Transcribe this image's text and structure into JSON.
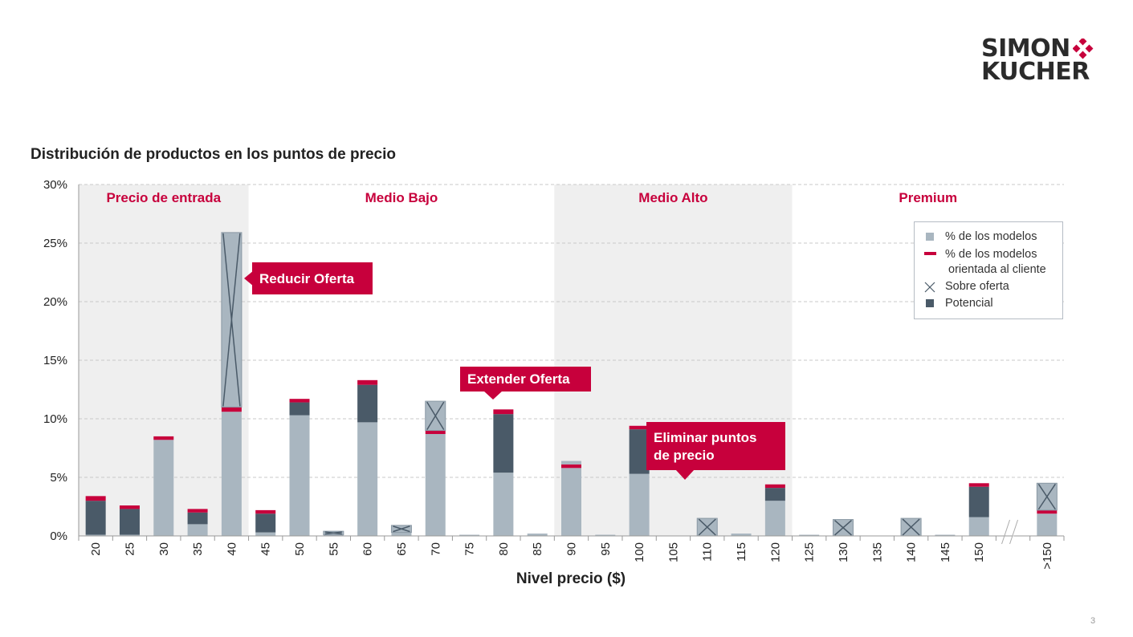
{
  "logo": {
    "line1": "SIMON",
    "line2": "KUCHER",
    "brand_color": "#c7003c"
  },
  "page_number": "3",
  "chart_data": {
    "type": "bar",
    "title": "Distribución de productos en los puntos de precio",
    "xlabel": "Nivel precio ($)",
    "ylabel": "",
    "ylim": [
      0,
      30
    ],
    "yticks": [
      "0%",
      "5%",
      "10%",
      "15%",
      "20%",
      "25%",
      "30%"
    ],
    "categories": [
      "20",
      "25",
      "30",
      "35",
      "40",
      "45",
      "50",
      "55",
      "60",
      "65",
      "70",
      "75",
      "80",
      "85",
      "90",
      "95",
      "100",
      "105",
      "110",
      "115",
      "120",
      "125",
      "130",
      "135",
      "140",
      "145",
      "150",
      "",
      ">150"
    ],
    "segments": [
      {
        "name": "% de los modelos",
        "color": "#a9b6c0",
        "values": [
          0.1,
          0.1,
          8.2,
          1.0,
          10.6,
          0.3,
          10.3,
          0.1,
          9.7,
          0.3,
          8.7,
          0.1,
          5.4,
          0.2,
          5.8,
          0.1,
          5.3,
          0,
          0,
          0.2,
          3.0,
          0.1,
          0,
          0,
          0,
          0.1,
          1.6,
          null,
          1.9
        ]
      },
      {
        "name": "Potencial",
        "color": "#4a5a68",
        "values": [
          2.9,
          2.2,
          0,
          1.0,
          0,
          1.6,
          1.1,
          0,
          3.2,
          0,
          0,
          0,
          5.0,
          0,
          0,
          0,
          3.8,
          0,
          0,
          0,
          1.1,
          0,
          0,
          0,
          0,
          0,
          2.6,
          null,
          0
        ]
      },
      {
        "name": "% de los modelos orientada al cliente",
        "color": "#c7003c",
        "values": [
          0.4,
          0.3,
          0.3,
          0.3,
          0.4,
          0.3,
          0.3,
          0,
          0.4,
          0,
          0.3,
          0,
          0.4,
          0,
          0.3,
          0,
          0.3,
          0,
          0,
          0,
          0.3,
          0,
          0,
          0,
          0,
          0,
          0.3,
          null,
          0.3
        ]
      },
      {
        "name": "Sobre oferta",
        "color": "#a9b6c0",
        "values": [
          0,
          0,
          0,
          0,
          14.9,
          0,
          0,
          0.3,
          0,
          0.6,
          2.5,
          0,
          0,
          0,
          0.3,
          0,
          0,
          0,
          1.5,
          0,
          0,
          0,
          1.4,
          0,
          1.5,
          0,
          0,
          null,
          2.3
        ]
      }
    ],
    "overoffer_marker": [
      false,
      false,
      false,
      false,
      true,
      false,
      false,
      true,
      false,
      true,
      true,
      false,
      false,
      false,
      false,
      false,
      false,
      false,
      true,
      false,
      false,
      false,
      true,
      false,
      true,
      false,
      false,
      false,
      true
    ],
    "regions": [
      {
        "label": "Precio de entrada",
        "from": "20",
        "to": "40",
        "shaded": true
      },
      {
        "label": "Medio Bajo",
        "from": "45",
        "to": "85",
        "shaded": false
      },
      {
        "label": "Medio Alto",
        "from": "90",
        "to": "120",
        "shaded": true
      },
      {
        "label": "Premium",
        "from": "125",
        "to": ">150",
        "shaded": false
      }
    ],
    "axis_break_after": "150",
    "grid": true,
    "legend": {
      "placement": "top-right",
      "items": [
        {
          "label": "% de los modelos",
          "symbol": "square",
          "color": "#a9b6c0"
        },
        {
          "label": "% de los modelos",
          "label2": "orientada al cliente",
          "symbol": "dash",
          "color": "#c7003c"
        },
        {
          "label": "Sobre oferta",
          "symbol": "cross",
          "color": "#4a5a68"
        },
        {
          "label": "Potencial",
          "symbol": "square",
          "color": "#4a5a68"
        }
      ]
    },
    "annotations": [
      {
        "text": "Reducir Oferta",
        "category": "40"
      },
      {
        "text": "Extender Oferta",
        "category": "80"
      },
      {
        "text": "Eliminar puntos",
        "text2": "de precio",
        "category": "110"
      }
    ],
    "colors": {
      "accent": "#c7003c",
      "light": "#a9b6c0",
      "dark": "#4a5a68",
      "shade": "#efefef"
    }
  }
}
